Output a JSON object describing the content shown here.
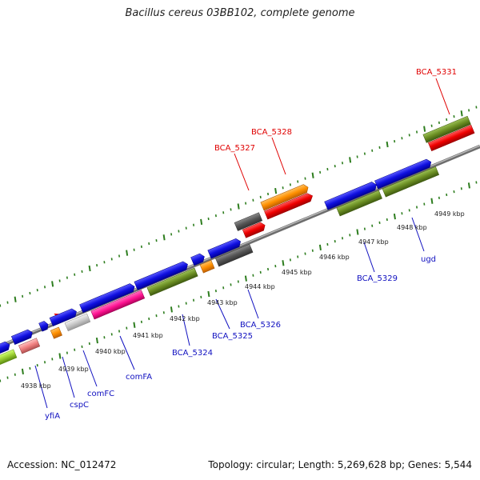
{
  "title": "Bacillus cereus 03BB102, complete genome",
  "accession": "Accession: NC_012472",
  "summary": "Topology: circular; Length: 5,269,628 bp; Genes: 5,544",
  "colors": {
    "backbone": "#8c8c8c",
    "tick": "#2d7d1e",
    "label_above": "#e00000",
    "label_below": "#1010c0"
  },
  "scale_labels": [
    "4938 kbp",
    "4939 kbp",
    "4940 kbp",
    "4941 kbp",
    "4942 kbp",
    "4943 kbp",
    "4944 kbp",
    "4945 kbp",
    "4946 kbp",
    "4947 kbp",
    "4948 kbp",
    "4949 kbp"
  ],
  "genes_above": [
    "BCA_5327",
    "BCA_5328",
    "BCA_5331"
  ],
  "genes_below": [
    "yfiA",
    "cspC",
    "comFC",
    "comFA",
    "BCA_5324",
    "BCA_5325",
    "BCA_5326",
    "BCA_5329",
    "ugd"
  ]
}
